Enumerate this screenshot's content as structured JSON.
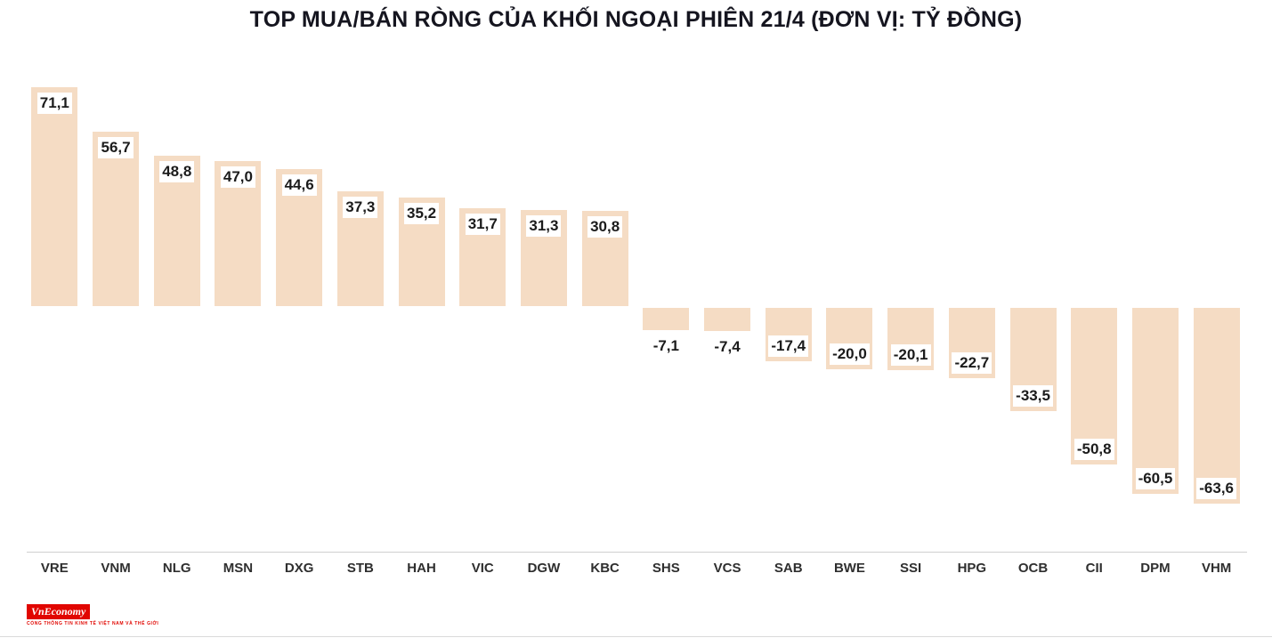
{
  "title": "TOP MUA/BÁN RÒNG CỦA KHỐI NGOẠI PHIÊN 21/4 (ĐƠN VỊ: TỶ ĐỒNG)",
  "chart_data": {
    "type": "bar",
    "title": "TOP MUA/BÁN RÒNG CỦA KHỐI NGOẠI PHIÊN 21/4 (ĐƠN VỊ: TỶ ĐỒNG)",
    "categories": [
      "VRE",
      "VNM",
      "NLG",
      "MSN",
      "DXG",
      "STB",
      "HAH",
      "VIC",
      "DGW",
      "KBC",
      "SHS",
      "VCS",
      "SAB",
      "BWE",
      "SSI",
      "HPG",
      "OCB",
      "CII",
      "DPM",
      "VHM"
    ],
    "values": [
      71.1,
      56.7,
      48.8,
      47.0,
      44.6,
      37.3,
      35.2,
      31.7,
      31.3,
      30.8,
      -7.1,
      -7.4,
      -17.4,
      -20.0,
      -20.1,
      -22.7,
      -33.5,
      -50.8,
      -60.5,
      -63.6
    ],
    "labels": [
      "71,1",
      "56,7",
      "48,8",
      "47,0",
      "44,6",
      "37,3",
      "35,2",
      "31,7",
      "31,3",
      "30,8",
      "-7,1",
      "-7,4",
      "-17,4",
      "-20,0",
      "-20,1",
      "-22,7",
      "-33,5",
      "-50,8",
      "-60,5",
      "-63,6"
    ],
    "xlabel": "",
    "ylabel": "",
    "ylim": [
      -75,
      80
    ],
    "grid": false,
    "legend": false,
    "bar_color": "#f5dcc4",
    "label_color": "#1b1b1b"
  },
  "footer": {
    "logo_text": "VnEconomy",
    "tagline": "CỔNG THÔNG TIN KINH TẾ VIỆT NAM VÀ THẾ GIỚI",
    "logo_bg": "#e10600"
  }
}
